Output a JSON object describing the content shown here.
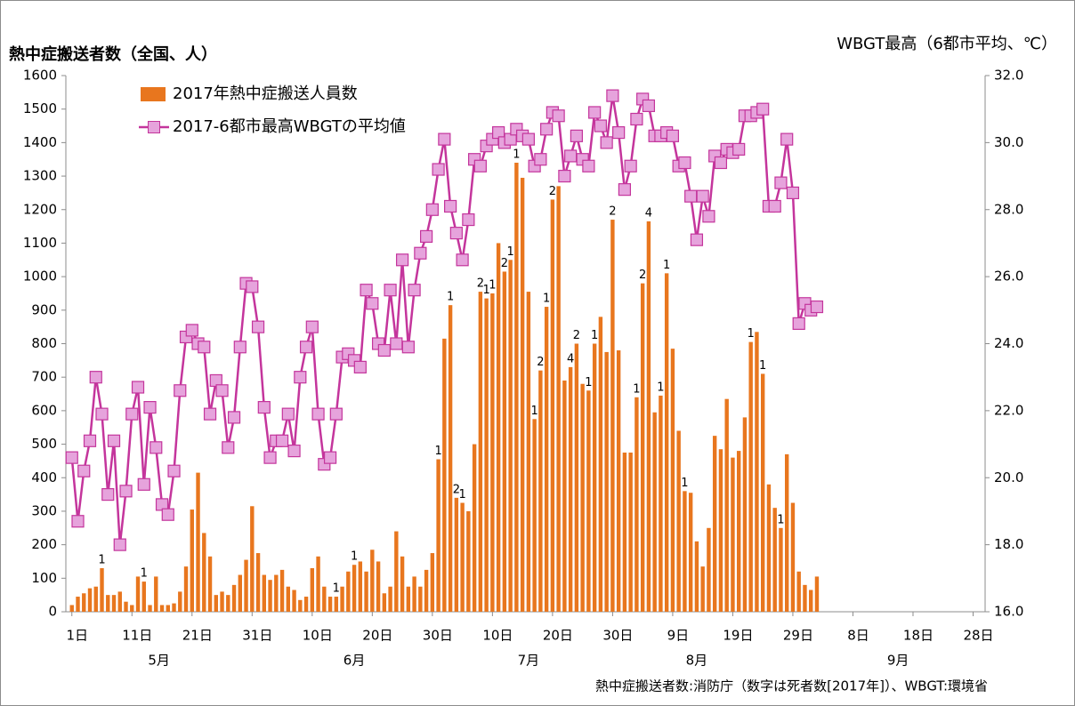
{
  "chart_data": {
    "type": "bar-line",
    "title": "熱中症搬送者数（全国、人）",
    "y2_title": "WBGT最高（6都市平均、℃）",
    "source": "熱中症搬送者数:消防庁（数字は死者数[2017年]）、WBGT:環境省",
    "xlim": [
      -1,
      152
    ],
    "xticks": [
      {
        "value": 0,
        "label": "1日"
      },
      {
        "value": 10,
        "label": "11日"
      },
      {
        "value": 20,
        "label": "21日"
      },
      {
        "value": 30,
        "label": "31日"
      },
      {
        "value": 40,
        "label": "10日"
      },
      {
        "value": 50,
        "label": "20日"
      },
      {
        "value": 60,
        "label": "30日"
      },
      {
        "value": 70,
        "label": "10日"
      },
      {
        "value": 80,
        "label": "20日"
      },
      {
        "value": 90,
        "label": "30日"
      },
      {
        "value": 100,
        "label": "9日"
      },
      {
        "value": 110,
        "label": "19日"
      },
      {
        "value": 120,
        "label": "29日"
      },
      {
        "value": 130,
        "label": "8日"
      },
      {
        "value": 140,
        "label": "18日"
      },
      {
        "value": 150,
        "label": "28日"
      }
    ],
    "month_labels": [
      {
        "value": 14.5,
        "label": "5月"
      },
      {
        "value": 47,
        "label": "6月"
      },
      {
        "value": 76,
        "label": "7月"
      },
      {
        "value": 104,
        "label": "8月"
      },
      {
        "value": 137.5,
        "label": "9月"
      }
    ],
    "ylim": [
      0,
      1600
    ],
    "yticks": [
      0,
      100,
      200,
      300,
      400,
      500,
      600,
      700,
      800,
      900,
      1000,
      1100,
      1200,
      1300,
      1400,
      1500,
      1600
    ],
    "y2lim": [
      16,
      32
    ],
    "y2ticks": [
      {
        "value": 16,
        "label": "16.0"
      },
      {
        "value": 18,
        "label": "18.0"
      },
      {
        "value": 20,
        "label": "20.0"
      },
      {
        "value": 22,
        "label": "22.0"
      },
      {
        "value": 24,
        "label": "24.0"
      },
      {
        "value": 26,
        "label": "26.0"
      },
      {
        "value": 28,
        "label": "28.0"
      },
      {
        "value": 30,
        "label": "30.0"
      },
      {
        "value": 32,
        "label": "32.0"
      }
    ],
    "series": [
      {
        "name": "2017年熱中症搬送人員数",
        "type": "bar",
        "color": "#e8761e",
        "values": [
          20,
          45,
          55,
          70,
          75,
          130,
          50,
          50,
          60,
          30,
          20,
          105,
          90,
          20,
          105,
          20,
          20,
          25,
          60,
          135,
          305,
          415,
          235,
          165,
          50,
          60,
          50,
          80,
          110,
          155,
          315,
          175,
          110,
          95,
          110,
          125,
          75,
          65,
          35,
          45,
          130,
          165,
          75,
          45,
          45,
          75,
          120,
          140,
          150,
          120,
          185,
          150,
          55,
          75,
          240,
          165,
          75,
          105,
          75,
          125,
          175,
          455,
          815,
          915,
          340,
          325,
          300,
          500,
          955,
          935,
          950,
          1100,
          1015,
          1050,
          1340,
          1295,
          955,
          575,
          720,
          910,
          1230,
          1270,
          690,
          730,
          800,
          680,
          660,
          800,
          880,
          775,
          1170,
          780,
          475,
          475,
          640,
          980,
          1165,
          595,
          645,
          1010,
          785,
          540,
          360,
          355,
          210,
          135,
          250,
          525,
          485,
          635,
          460,
          480,
          580,
          805,
          835,
          710,
          380,
          310,
          250,
          470,
          325,
          120,
          80,
          65,
          105
        ]
      },
      {
        "name": "2017-6都市最高WBGTの平均値",
        "type": "line",
        "axis": "y2",
        "color": "#c4359c",
        "marker_fill": "#e6a3dc",
        "values": [
          20.6,
          18.7,
          20.2,
          21.1,
          23.0,
          21.9,
          19.5,
          21.1,
          18.0,
          19.6,
          21.9,
          22.7,
          19.8,
          22.1,
          20.9,
          19.2,
          18.9,
          20.2,
          22.6,
          24.2,
          24.4,
          24.0,
          23.9,
          21.9,
          22.9,
          22.6,
          20.9,
          21.8,
          23.9,
          25.8,
          25.7,
          24.5,
          22.1,
          20.6,
          21.1,
          21.1,
          21.9,
          20.8,
          23.0,
          23.9,
          24.5,
          21.9,
          20.4,
          20.6,
          21.9,
          23.6,
          23.7,
          23.5,
          23.3,
          25.6,
          25.2,
          24.0,
          23.8,
          25.6,
          24.0,
          26.5,
          23.9,
          25.6,
          26.7,
          27.2,
          28.0,
          29.2,
          30.1,
          28.1,
          27.3,
          26.5,
          27.7,
          29.5,
          29.3,
          29.9,
          30.1,
          30.3,
          30.0,
          30.1,
          30.4,
          30.2,
          30.1,
          29.3,
          29.5,
          30.4,
          30.9,
          30.8,
          29.0,
          29.6,
          30.2,
          29.5,
          29.3,
          30.9,
          30.5,
          30.0,
          31.4,
          30.3,
          28.6,
          29.3,
          30.7,
          31.3,
          31.1,
          30.2,
          30.2,
          30.3,
          30.2,
          29.3,
          29.4,
          28.4,
          27.1,
          28.4,
          27.8,
          29.6,
          29.4,
          29.8,
          29.7,
          29.8,
          30.8,
          30.8,
          30.9,
          31.0,
          28.1,
          28.1,
          28.8,
          30.1,
          28.5,
          24.6,
          25.2,
          25.0,
          25.1
        ]
      }
    ],
    "deaths": [
      {
        "index": 5,
        "value": 1
      },
      {
        "index": 12,
        "value": 1
      },
      {
        "index": 44,
        "value": 1
      },
      {
        "index": 47,
        "value": 1
      },
      {
        "index": 61,
        "value": 1
      },
      {
        "index": 63,
        "value": 1
      },
      {
        "index": 64,
        "value": 2
      },
      {
        "index": 65,
        "value": 1
      },
      {
        "index": 68,
        "value": 2
      },
      {
        "index": 69,
        "value": 1
      },
      {
        "index": 70,
        "value": 1
      },
      {
        "index": 72,
        "value": 2
      },
      {
        "index": 73,
        "value": 1
      },
      {
        "index": 74,
        "value": 1
      },
      {
        "index": 77,
        "value": 1
      },
      {
        "index": 78,
        "value": 2
      },
      {
        "index": 79,
        "value": 1
      },
      {
        "index": 80,
        "value": 2
      },
      {
        "index": 83,
        "value": 4
      },
      {
        "index": 84,
        "value": 2
      },
      {
        "index": 86,
        "value": 1
      },
      {
        "index": 87,
        "value": 1
      },
      {
        "index": 90,
        "value": 2
      },
      {
        "index": 94,
        "value": 1
      },
      {
        "index": 95,
        "value": 2
      },
      {
        "index": 96,
        "value": 4
      },
      {
        "index": 98,
        "value": 1
      },
      {
        "index": 99,
        "value": 1
      },
      {
        "index": 102,
        "value": 1
      },
      {
        "index": 113,
        "value": 1
      },
      {
        "index": 115,
        "value": 1
      },
      {
        "index": 118,
        "value": 1
      }
    ]
  }
}
